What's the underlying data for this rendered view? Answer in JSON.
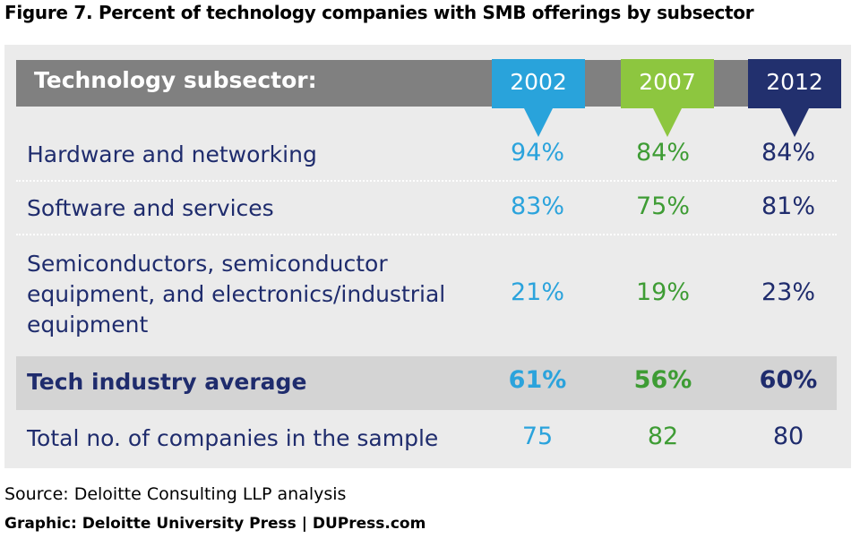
{
  "title": "Figure 7. Percent of technology companies with SMB offerings by subsector",
  "header": {
    "label": "Technology subsector:",
    "years": [
      {
        "label": "2002",
        "color": "#29a3db"
      },
      {
        "label": "2007",
        "color": "#8dc63f"
      },
      {
        "label": "2012",
        "color": "#22306e"
      }
    ]
  },
  "rows": [
    {
      "label": "Hardware and networking",
      "values": [
        "94%",
        "84%",
        "84%"
      ]
    },
    {
      "label": "Software and services",
      "values": [
        "83%",
        "75%",
        "81%"
      ]
    },
    {
      "label": "Semiconductors, semiconductor equipment, and electronics/industrial equipment",
      "values": [
        "21%",
        "19%",
        "23%"
      ]
    },
    {
      "label": "Tech industry average",
      "values": [
        "61%",
        "56%",
        "60%"
      ]
    },
    {
      "label": "Total no. of companies in the sample",
      "values": [
        "75",
        "82",
        "80"
      ]
    }
  ],
  "chart_data": {
    "type": "table",
    "title": "Figure 7. Percent of technology companies with SMB offerings by subsector",
    "columns": [
      "Technology subsector:",
      "2002",
      "2007",
      "2012"
    ],
    "rows": [
      {
        "subsector": "Hardware and networking",
        "2002": 94,
        "2007": 84,
        "2012": 84
      },
      {
        "subsector": "Software and services",
        "2002": 83,
        "2007": 75,
        "2012": 81
      },
      {
        "subsector": "Semiconductors, semiconductor equipment, and electronics/industrial equipment",
        "2002": 21,
        "2007": 19,
        "2012": 23
      },
      {
        "subsector": "Tech industry average",
        "2002": 61,
        "2007": 56,
        "2012": 60
      },
      {
        "subsector": "Total no. of companies in the sample",
        "2002": 75,
        "2007": 82,
        "2012": 80
      }
    ]
  },
  "source": "Source: Deloitte Consulting LLP analysis",
  "graphic": "Graphic: Deloitte University Press  |  DUPress.com"
}
